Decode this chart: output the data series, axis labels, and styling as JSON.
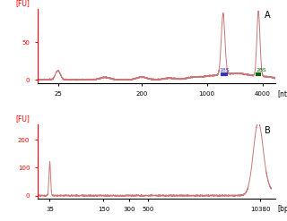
{
  "panel_A": {
    "label": "A",
    "ylabel": "[FU]",
    "xlabel": "[nt]",
    "yticks": [
      0,
      50
    ],
    "ytick_labels": [
      "0",
      "50"
    ],
    "ymax": 95,
    "ymin": -5,
    "xticks_labels": [
      "25",
      "200",
      "1000",
      "4000"
    ],
    "xticks_pos": [
      25,
      200,
      1000,
      4000
    ],
    "xmin": 15,
    "xmax": 5500,
    "marker_18S": {
      "label": "18S",
      "color": "#3333bb",
      "xstart": 1400,
      "xend": 1700
    },
    "marker_28S": {
      "label": "28S",
      "color": "#006600",
      "xstart": 3350,
      "xend": 3850
    },
    "line_color": "#cc7777",
    "background": "white"
  },
  "panel_B": {
    "label": "B",
    "ylabel": "[FU]",
    "xlabel": "[bp]",
    "yticks": [
      0,
      100,
      200
    ],
    "ytick_labels": [
      "0",
      "100",
      "200"
    ],
    "ymax": 255,
    "ymin": -12,
    "xticks_labels": [
      "35",
      "150",
      "300",
      "500",
      "10380"
    ],
    "xticks_pos": [
      35,
      150,
      300,
      500,
      10380
    ],
    "xmin": 25,
    "xmax": 14000,
    "line_color": "#cc7777",
    "background": "white"
  }
}
